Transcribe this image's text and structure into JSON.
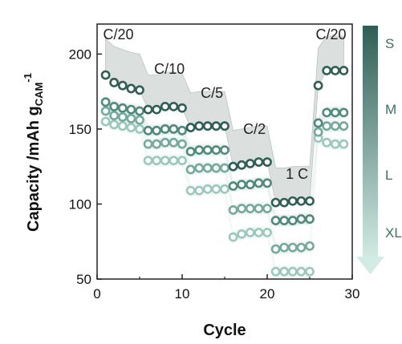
{
  "chart_data": {
    "type": "scatter",
    "title": "",
    "xlabel": "Cycle",
    "ylabel_parts": {
      "main": "Capacity /mAh g",
      "sub": "CAM",
      "sup": "-1"
    },
    "xlim": [
      0,
      30
    ],
    "ylim": [
      50,
      220
    ],
    "xticks": [
      0,
      10,
      20,
      30
    ],
    "yticks": [
      50,
      100,
      150,
      200
    ],
    "grid": false,
    "rate_labels": [
      {
        "text": "C/20",
        "x": 2.5,
        "y": 213
      },
      {
        "text": "C/10",
        "x": 8.5,
        "y": 190
      },
      {
        "text": "C/5",
        "x": 13.5,
        "y": 174
      },
      {
        "text": "C/2",
        "x": 18.5,
        "y": 150
      },
      {
        "text": "1 C",
        "x": 23.5,
        "y": 120
      },
      {
        "text": "C/20",
        "x": 27.5,
        "y": 213
      }
    ],
    "legend": {
      "position": "right",
      "labels": [
        "S",
        "M",
        "L",
        "XL"
      ]
    },
    "series": [
      {
        "name": "S",
        "color": "#2f5e55",
        "x": [
          1,
          2,
          3,
          4,
          5,
          6,
          7,
          8,
          9,
          10,
          11,
          12,
          13,
          14,
          15,
          16,
          17,
          18,
          19,
          20,
          21,
          22,
          23,
          24,
          25,
          26,
          27,
          28,
          29
        ],
        "values": [
          186,
          181,
          179,
          177,
          176,
          163,
          163,
          165,
          165,
          164,
          151,
          152,
          152,
          152,
          152,
          125,
          126,
          127,
          128,
          128,
          101,
          101,
          102,
          102,
          102,
          179,
          189,
          189,
          189
        ],
        "band_upper": [
          210,
          205,
          203,
          201,
          200,
          186,
          186,
          188,
          188,
          187,
          174,
          175,
          175,
          175,
          175,
          149,
          150,
          151,
          152,
          152,
          124,
          124,
          125,
          125,
          125,
          204,
          212,
          212,
          212
        ]
      },
      {
        "name": "M",
        "color": "#4f8a7c",
        "x": [
          1,
          2,
          3,
          4,
          5,
          6,
          7,
          8,
          9,
          10,
          11,
          12,
          13,
          14,
          15,
          16,
          17,
          18,
          19,
          20,
          21,
          22,
          23,
          24,
          25,
          26,
          27,
          28,
          29
        ],
        "values": [
          168,
          165,
          164,
          163,
          162,
          149,
          149,
          150,
          150,
          149,
          135,
          136,
          136,
          136,
          136,
          112,
          113,
          113,
          114,
          114,
          89,
          89,
          89,
          90,
          90,
          154,
          161,
          161,
          161
        ]
      },
      {
        "name": "L",
        "color": "#74a99c",
        "x": [
          1,
          2,
          3,
          4,
          5,
          6,
          7,
          8,
          9,
          10,
          11,
          12,
          13,
          14,
          15,
          16,
          17,
          18,
          19,
          20,
          21,
          22,
          23,
          24,
          25,
          26,
          27,
          28,
          29
        ],
        "values": [
          162,
          159,
          158,
          157,
          156,
          140,
          140,
          141,
          141,
          140,
          123,
          124,
          124,
          124,
          124,
          96,
          97,
          97,
          97,
          97,
          70,
          71,
          71,
          71,
          72,
          148,
          152,
          152,
          152
        ]
      },
      {
        "name": "XL",
        "color": "#9ac8bc",
        "x": [
          1,
          2,
          3,
          4,
          5,
          6,
          7,
          8,
          9,
          10,
          11,
          12,
          13,
          14,
          15,
          16,
          17,
          18,
          19,
          20,
          21,
          22,
          23,
          24,
          25,
          26,
          27,
          28,
          29
        ],
        "values": [
          155,
          153,
          152,
          151,
          150,
          129,
          129,
          129,
          129,
          129,
          109,
          109,
          110,
          110,
          110,
          78,
          80,
          81,
          81,
          81,
          55,
          55,
          55,
          55,
          55,
          144,
          141,
          140,
          140
        ]
      }
    ]
  }
}
